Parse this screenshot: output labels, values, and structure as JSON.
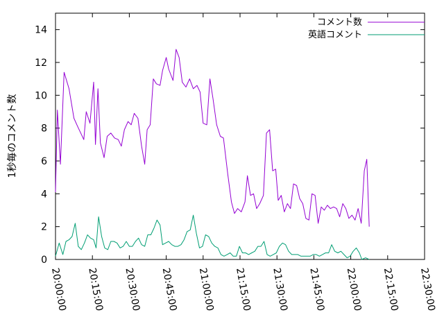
{
  "chart_data": {
    "type": "line",
    "title": "",
    "xlabel": "",
    "ylabel": "1秒毎のコメント数",
    "xlim": [
      "20:00:00",
      "22:30:00"
    ],
    "ylim": [
      0,
      15
    ],
    "x_ticks": [
      "20:00:00",
      "20:15:00",
      "20:30:00",
      "20:45:00",
      "21:00:00",
      "21:15:00",
      "21:30:00",
      "21:45:00",
      "22:00:00",
      "22:15:00",
      "22:30:00"
    ],
    "y_ticks": [
      0,
      2,
      4,
      6,
      8,
      10,
      12,
      14
    ],
    "grid": false,
    "legend_position": "top-right",
    "series": [
      {
        "name": "コメント数",
        "color": "#9400d3",
        "points": [
          [
            "20:00:00",
            4.1
          ],
          [
            "20:00:45",
            9.1
          ],
          [
            "20:02:00",
            5.8
          ],
          [
            "20:03:30",
            11.4
          ],
          [
            "20:05:30",
            10.4
          ],
          [
            "20:07:30",
            8.6
          ],
          [
            "20:09:00",
            8.1
          ],
          [
            "20:11:30",
            7.3
          ],
          [
            "20:12:30",
            9.0
          ],
          [
            "20:14:00",
            8.3
          ],
          [
            "20:15:30",
            10.8
          ],
          [
            "20:16:15",
            7.0
          ],
          [
            "20:17:15",
            10.4
          ],
          [
            "20:18:15",
            7.1
          ],
          [
            "20:19:45",
            6.2
          ],
          [
            "20:21:00",
            7.5
          ],
          [
            "20:22:30",
            7.7
          ],
          [
            "20:24:00",
            7.4
          ],
          [
            "20:25:30",
            7.3
          ],
          [
            "20:26:45",
            6.9
          ],
          [
            "20:28:00",
            7.9
          ],
          [
            "20:29:30",
            8.4
          ],
          [
            "20:30:45",
            8.2
          ],
          [
            "20:32:00",
            8.9
          ],
          [
            "20:33:30",
            8.6
          ],
          [
            "20:35:00",
            6.9
          ],
          [
            "20:36:15",
            5.8
          ],
          [
            "20:37:15",
            7.9
          ],
          [
            "20:38:30",
            8.2
          ],
          [
            "20:39:45",
            11.0
          ],
          [
            "20:41:00",
            10.7
          ],
          [
            "20:42:30",
            10.6
          ],
          [
            "20:43:30",
            11.5
          ],
          [
            "20:45:00",
            12.3
          ],
          [
            "20:46:00",
            11.6
          ],
          [
            "20:47:45",
            10.9
          ],
          [
            "20:49:00",
            12.8
          ],
          [
            "20:50:15",
            12.3
          ],
          [
            "20:51:30",
            10.8
          ],
          [
            "20:53:00",
            10.5
          ],
          [
            "20:54:30",
            11.0
          ],
          [
            "20:56:00",
            10.4
          ],
          [
            "20:57:30",
            10.6
          ],
          [
            "20:58:45",
            10.2
          ],
          [
            "21:00:00",
            8.3
          ],
          [
            "21:01:30",
            8.2
          ],
          [
            "21:02:45",
            11.0
          ],
          [
            "21:04:00",
            9.8
          ],
          [
            "21:05:30",
            8.2
          ],
          [
            "21:07:00",
            7.5
          ],
          [
            "21:08:15",
            7.4
          ],
          [
            "21:10:00",
            5.2
          ],
          [
            "21:11:30",
            3.5
          ],
          [
            "21:12:45",
            2.8
          ],
          [
            "21:14:00",
            3.1
          ],
          [
            "21:15:30",
            2.9
          ],
          [
            "21:17:00",
            3.5
          ],
          [
            "21:18:00",
            5.1
          ],
          [
            "21:19:15",
            3.9
          ],
          [
            "21:20:30",
            4.0
          ],
          [
            "21:21:45",
            3.1
          ],
          [
            "21:23:00",
            3.4
          ],
          [
            "21:24:30",
            3.9
          ],
          [
            "21:25:45",
            7.7
          ],
          [
            "21:27:00",
            7.9
          ],
          [
            "21:28:15",
            5.4
          ],
          [
            "21:29:30",
            5.5
          ],
          [
            "21:30:30",
            3.6
          ],
          [
            "21:31:45",
            3.9
          ],
          [
            "21:33:00",
            2.9
          ],
          [
            "21:34:15",
            3.4
          ],
          [
            "21:35:30",
            3.1
          ],
          [
            "21:36:45",
            4.6
          ],
          [
            "21:38:00",
            4.5
          ],
          [
            "21:39:15",
            3.7
          ],
          [
            "21:40:30",
            3.4
          ],
          [
            "21:41:45",
            2.5
          ],
          [
            "21:43:00",
            2.4
          ],
          [
            "21:44:15",
            4.0
          ],
          [
            "21:45:30",
            3.9
          ],
          [
            "21:46:45",
            2.2
          ],
          [
            "21:48:00",
            3.2
          ],
          [
            "21:49:15",
            3.0
          ],
          [
            "21:50:30",
            3.3
          ],
          [
            "21:51:45",
            3.1
          ],
          [
            "21:53:00",
            3.2
          ],
          [
            "21:54:15",
            3.1
          ],
          [
            "21:55:30",
            2.6
          ],
          [
            "21:56:45",
            3.4
          ],
          [
            "21:58:00",
            3.1
          ],
          [
            "21:59:15",
            2.5
          ],
          [
            "22:00:30",
            2.7
          ],
          [
            "22:01:45",
            2.4
          ],
          [
            "22:03:00",
            3.1
          ],
          [
            "22:04:15",
            2.2
          ],
          [
            "22:05:30",
            5.4
          ],
          [
            "22:06:30",
            6.1
          ],
          [
            "22:07:30",
            2.0
          ]
        ]
      },
      {
        "name": "英語コメント",
        "color": "#009e73",
        "points": [
          [
            "20:00:00",
            0.2
          ],
          [
            "20:01:30",
            1.0
          ],
          [
            "20:03:00",
            0.3
          ],
          [
            "20:04:15",
            1.1
          ],
          [
            "20:05:30",
            1.2
          ],
          [
            "20:06:45",
            1.4
          ],
          [
            "20:08:00",
            2.2
          ],
          [
            "20:09:15",
            0.8
          ],
          [
            "20:10:30",
            0.6
          ],
          [
            "20:11:45",
            1.0
          ],
          [
            "20:13:00",
            1.5
          ],
          [
            "20:14:15",
            1.3
          ],
          [
            "20:15:30",
            1.2
          ],
          [
            "20:16:30",
            0.7
          ],
          [
            "20:17:30",
            2.6
          ],
          [
            "20:18:45",
            1.4
          ],
          [
            "20:20:00",
            0.7
          ],
          [
            "20:21:15",
            0.6
          ],
          [
            "20:22:30",
            1.1
          ],
          [
            "20:23:45",
            1.1
          ],
          [
            "20:25:00",
            1.0
          ],
          [
            "20:26:15",
            0.7
          ],
          [
            "20:27:30",
            0.8
          ],
          [
            "20:28:45",
            1.1
          ],
          [
            "20:30:00",
            0.8
          ],
          [
            "20:31:15",
            0.8
          ],
          [
            "20:32:30",
            1.1
          ],
          [
            "20:33:45",
            1.3
          ],
          [
            "20:35:00",
            0.9
          ],
          [
            "20:36:15",
            0.8
          ],
          [
            "20:37:30",
            1.5
          ],
          [
            "20:38:45",
            1.5
          ],
          [
            "20:40:00",
            1.9
          ],
          [
            "20:41:15",
            2.4
          ],
          [
            "20:42:30",
            2.1
          ],
          [
            "20:43:30",
            0.9
          ],
          [
            "20:44:45",
            1.0
          ],
          [
            "20:46:00",
            1.1
          ],
          [
            "20:47:15",
            0.9
          ],
          [
            "20:48:30",
            0.8
          ],
          [
            "20:49:45",
            0.8
          ],
          [
            "20:51:00",
            0.9
          ],
          [
            "20:52:15",
            1.2
          ],
          [
            "20:53:30",
            1.7
          ],
          [
            "20:54:45",
            1.8
          ],
          [
            "20:56:00",
            2.7
          ],
          [
            "20:57:15",
            1.6
          ],
          [
            "20:58:30",
            0.7
          ],
          [
            "20:59:45",
            0.8
          ],
          [
            "21:01:00",
            1.5
          ],
          [
            "21:02:15",
            1.4
          ],
          [
            "21:03:30",
            1.0
          ],
          [
            "21:04:45",
            0.8
          ],
          [
            "21:06:00",
            0.7
          ],
          [
            "21:07:15",
            0.3
          ],
          [
            "21:08:30",
            0.2
          ],
          [
            "21:09:45",
            0.3
          ],
          [
            "21:11:00",
            0.4
          ],
          [
            "21:12:15",
            0.2
          ],
          [
            "21:13:30",
            0.2
          ],
          [
            "21:14:45",
            0.8
          ],
          [
            "21:16:00",
            0.4
          ],
          [
            "21:17:15",
            0.4
          ],
          [
            "21:18:30",
            0.3
          ],
          [
            "21:19:45",
            0.4
          ],
          [
            "21:21:00",
            0.5
          ],
          [
            "21:22:15",
            0.8
          ],
          [
            "21:23:30",
            0.8
          ],
          [
            "21:24:45",
            1.1
          ],
          [
            "21:26:00",
            0.3
          ],
          [
            "21:27:15",
            0.2
          ],
          [
            "21:28:30",
            0.3
          ],
          [
            "21:29:45",
            0.4
          ],
          [
            "21:31:00",
            0.8
          ],
          [
            "21:32:15",
            1.0
          ],
          [
            "21:33:30",
            0.9
          ],
          [
            "21:34:45",
            0.5
          ],
          [
            "21:36:00",
            0.3
          ],
          [
            "21:37:15",
            0.3
          ],
          [
            "21:38:30",
            0.3
          ],
          [
            "21:39:45",
            0.2
          ],
          [
            "21:41:00",
            0.2
          ],
          [
            "21:42:15",
            0.2
          ],
          [
            "21:43:30",
            0.2
          ],
          [
            "21:44:45",
            0.3
          ],
          [
            "21:46:00",
            0.3
          ],
          [
            "21:47:15",
            0.2
          ],
          [
            "21:48:30",
            0.3
          ],
          [
            "21:49:45",
            0.4
          ],
          [
            "21:51:00",
            0.4
          ],
          [
            "21:52:15",
            0.9
          ],
          [
            "21:53:30",
            0.5
          ],
          [
            "21:54:45",
            0.4
          ],
          [
            "21:56:00",
            0.5
          ],
          [
            "21:57:15",
            0.3
          ],
          [
            "21:58:30",
            0.1
          ],
          [
            "21:59:45",
            0.2
          ],
          [
            "22:01:00",
            0.5
          ],
          [
            "22:02:15",
            0.7
          ],
          [
            "22:03:30",
            0.4
          ],
          [
            "22:04:30",
            0.0
          ],
          [
            "22:06:00",
            0.1
          ],
          [
            "22:07:30",
            0.0
          ]
        ]
      }
    ]
  }
}
